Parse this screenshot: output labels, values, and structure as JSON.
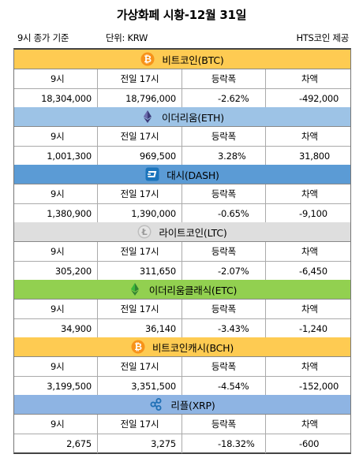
{
  "title": "가상화페 시황-12월 31일",
  "info": {
    "left1": "9시 종가 기준",
    "left2": "단위: KRW",
    "right": "HTS코인 제공"
  },
  "columns": [
    "9시",
    "전일 17시",
    "등락폭",
    "차액"
  ],
  "colors": {
    "btc": "#fecb52",
    "eth": "#9dc3e6",
    "dash": "#5b9bd5",
    "ltc": "#dedede",
    "etc": "#92d050",
    "bch": "#fecb52",
    "xrp": "#8eb4e3"
  },
  "coins": [
    {
      "id": "btc",
      "name": "비트코인(BTC)",
      "icon": "bitcoin-icon",
      "values": [
        "18,304,000",
        "18,796,000",
        "-2.62%",
        "-492,000"
      ]
    },
    {
      "id": "eth",
      "name": "이더리움(ETH)",
      "icon": "ethereum-icon",
      "values": [
        "1,001,300",
        "969,500",
        "3.28%",
        "31,800"
      ]
    },
    {
      "id": "dash",
      "name": "대시(DASH)",
      "icon": "dash-icon",
      "values": [
        "1,380,900",
        "1,390,000",
        "-0.65%",
        "-9,100"
      ]
    },
    {
      "id": "ltc",
      "name": "라이트코인(LTC)",
      "icon": "litecoin-icon",
      "values": [
        "305,200",
        "311,650",
        "-2.07%",
        "-6,450"
      ]
    },
    {
      "id": "etc",
      "name": "이더리움클래식(ETC)",
      "icon": "ethereum-classic-icon",
      "values": [
        "34,900",
        "36,140",
        "-3.43%",
        "-1,240"
      ]
    },
    {
      "id": "bch",
      "name": "비트코인캐시(BCH)",
      "icon": "bitcoin-cash-icon",
      "values": [
        "3,199,500",
        "3,351,500",
        "-4.54%",
        "-152,000"
      ]
    },
    {
      "id": "xrp",
      "name": "리플(XRP)",
      "icon": "ripple-icon",
      "values": [
        "2,675",
        "3,275",
        "-18.32%",
        "-600"
      ]
    }
  ]
}
